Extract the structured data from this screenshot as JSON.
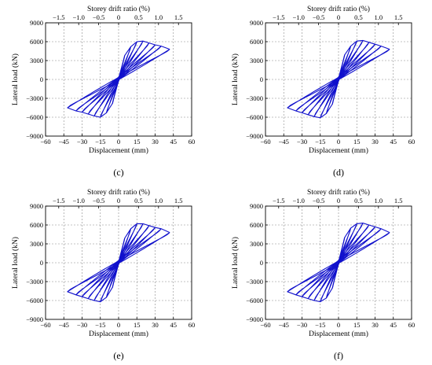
{
  "chart_data": [
    {
      "type": "line",
      "panel_label": "(c)",
      "xlabel": "Displacement (mm)",
      "ylabel": "Lateral load (kN)",
      "top_xlabel": "Storey drift ratio (%)",
      "xlim": [
        -60,
        60
      ],
      "ylim": [
        -9000,
        9000
      ],
      "top_xlim": [
        -1.83,
        1.83
      ],
      "x_ticks": [
        "−60",
        "−45",
        "−30",
        "−15",
        "0",
        "15",
        "30",
        "45",
        "60"
      ],
      "y_ticks": [
        "9000",
        "6000",
        "3000",
        "0",
        "−3000",
        "−6000",
        "−9000"
      ],
      "top_ticks": [
        "−1.5",
        "−1.0",
        "−0.5",
        "0",
        "0.5",
        "1.0",
        "1.5"
      ],
      "grid": true,
      "series_color": "#1010cc",
      "envelope": {
        "positive": [
          [
            5,
            3800
          ],
          [
            10,
            5200
          ],
          [
            15,
            6000
          ],
          [
            20,
            6100
          ],
          [
            25,
            5800
          ],
          [
            30,
            5500
          ],
          [
            35,
            5300
          ],
          [
            42,
            4800
          ]
        ],
        "negative": [
          [
            -5,
            -3800
          ],
          [
            -10,
            -5300
          ],
          [
            -15,
            -6000
          ],
          [
            -20,
            -5800
          ],
          [
            -25,
            -5500
          ],
          [
            -30,
            -5200
          ],
          [
            -35,
            -5000
          ],
          [
            -42,
            -4500
          ]
        ]
      }
    },
    {
      "type": "line",
      "panel_label": "(d)",
      "xlabel": "Displacement (mm)",
      "ylabel": "Lateral load (kN)",
      "top_xlabel": "Storey drift ratio (%)",
      "xlim": [
        -60,
        60
      ],
      "ylim": [
        -9000,
        9000
      ],
      "top_xlim": [
        -1.83,
        1.83
      ],
      "x_ticks": [
        "−60",
        "−45",
        "−30",
        "−15",
        "0",
        "15",
        "30",
        "45",
        "60"
      ],
      "y_ticks": [
        "9000",
        "6000",
        "3000",
        "0",
        "−3000",
        "−6000",
        "−9000"
      ],
      "top_ticks": [
        "−1.5",
        "−1.0",
        "−0.5",
        "0",
        "0.5",
        "1.0",
        "1.5"
      ],
      "grid": true,
      "series_color": "#1010cc",
      "envelope": {
        "positive": [
          [
            5,
            3900
          ],
          [
            10,
            5300
          ],
          [
            15,
            6100
          ],
          [
            20,
            6200
          ],
          [
            25,
            5900
          ],
          [
            30,
            5600
          ],
          [
            35,
            5300
          ],
          [
            42,
            4800
          ]
        ],
        "negative": [
          [
            -5,
            -3900
          ],
          [
            -10,
            -5400
          ],
          [
            -15,
            -6100
          ],
          [
            -20,
            -5900
          ],
          [
            -25,
            -5600
          ],
          [
            -30,
            -5300
          ],
          [
            -35,
            -5000
          ],
          [
            -42,
            -4500
          ]
        ]
      }
    },
    {
      "type": "line",
      "panel_label": "(e)",
      "xlabel": "Displacement (mm)",
      "ylabel": "Lateral load (kN)",
      "top_xlabel": "Storey drift ratio (%)",
      "xlim": [
        -60,
        60
      ],
      "ylim": [
        -9000,
        9000
      ],
      "top_xlim": [
        -1.83,
        1.83
      ],
      "x_ticks": [
        "−60",
        "−45",
        "−30",
        "−15",
        "0",
        "15",
        "30",
        "45",
        "60"
      ],
      "y_ticks": [
        "9000",
        "6000",
        "3000",
        "0",
        "−3000",
        "−6000",
        "−9000"
      ],
      "top_ticks": [
        "−1.5",
        "−1.0",
        "−0.5",
        "0",
        "0.5",
        "1.0",
        "1.5"
      ],
      "grid": true,
      "series_color": "#1010cc",
      "envelope": {
        "positive": [
          [
            5,
            3900
          ],
          [
            10,
            5400
          ],
          [
            15,
            6200
          ],
          [
            20,
            6200
          ],
          [
            25,
            5900
          ],
          [
            30,
            5600
          ],
          [
            35,
            5400
          ],
          [
            42,
            4800
          ]
        ],
        "negative": [
          [
            -5,
            -3900
          ],
          [
            -10,
            -5500
          ],
          [
            -15,
            -6200
          ],
          [
            -20,
            -6000
          ],
          [
            -25,
            -5700
          ],
          [
            -30,
            -5400
          ],
          [
            -35,
            -5100
          ],
          [
            -42,
            -4600
          ]
        ]
      }
    },
    {
      "type": "line",
      "panel_label": "(f)",
      "xlabel": "Displacement (mm)",
      "ylabel": "Lateral load (kN)",
      "top_xlabel": "Storey drift ratio (%)",
      "xlim": [
        -60,
        60
      ],
      "ylim": [
        -9000,
        9000
      ],
      "top_xlim": [
        -1.83,
        1.83
      ],
      "x_ticks": [
        "−60",
        "−45",
        "−30",
        "−15",
        "0",
        "15",
        "30",
        "45",
        "60"
      ],
      "y_ticks": [
        "9000",
        "6000",
        "3000",
        "0",
        "−3000",
        "−6000",
        "−9000"
      ],
      "top_ticks": [
        "−1.5",
        "−1.0",
        "−0.5",
        "0",
        "0.5",
        "1.0",
        "1.5"
      ],
      "grid": true,
      "series_color": "#1010cc",
      "envelope": {
        "positive": [
          [
            5,
            4000
          ],
          [
            10,
            5500
          ],
          [
            15,
            6200
          ],
          [
            20,
            6300
          ],
          [
            25,
            6000
          ],
          [
            30,
            5700
          ],
          [
            35,
            5400
          ],
          [
            42,
            4800
          ]
        ],
        "negative": [
          [
            -5,
            -4000
          ],
          [
            -10,
            -5600
          ],
          [
            -15,
            -6200
          ],
          [
            -20,
            -6000
          ],
          [
            -25,
            -5700
          ],
          [
            -30,
            -5400
          ],
          [
            -35,
            -5100
          ],
          [
            -42,
            -4600
          ]
        ]
      }
    }
  ]
}
